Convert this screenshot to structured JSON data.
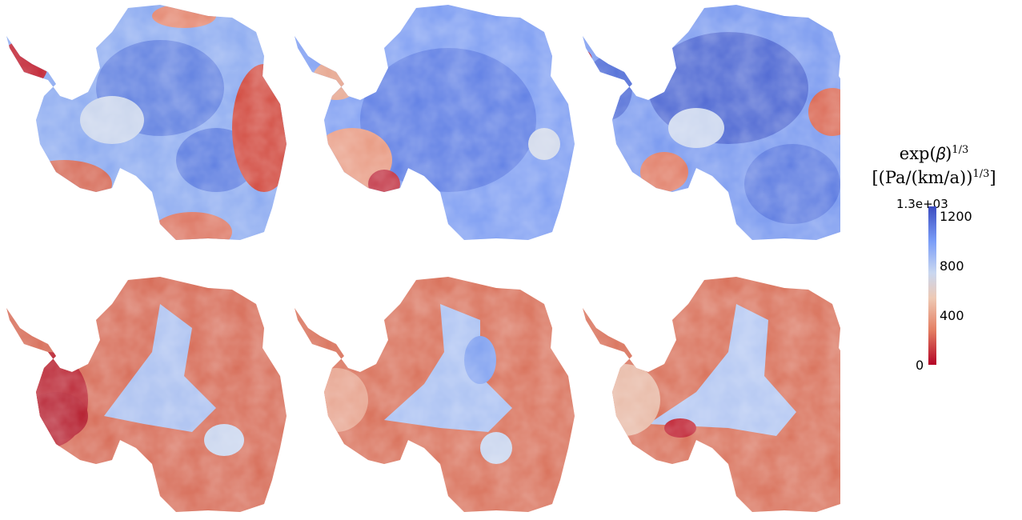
{
  "figure": {
    "rows": 2,
    "cols": 3,
    "panels": [
      {
        "row": 1,
        "col": 1,
        "field": "upper-left map",
        "palette": "mixed"
      },
      {
        "row": 1,
        "col": 2,
        "field": "upper-middle map",
        "palette": "mostly-blue"
      },
      {
        "row": 1,
        "col": 3,
        "field": "upper-right map",
        "palette": "mostly-blue"
      },
      {
        "row": 2,
        "col": 1,
        "field": "lower-left map",
        "palette": "mostly-red"
      },
      {
        "row": 2,
        "col": 2,
        "field": "lower-middle map",
        "palette": "mostly-red"
      },
      {
        "row": 2,
        "col": 3,
        "field": "lower-right map",
        "palette": "mostly-red"
      }
    ]
  },
  "colorbar": {
    "title_line1": "exp(β)^{1/3}",
    "title_line1_display": "exp(𝛽)",
    "title_sup1": "1/3",
    "title_line2_display": "[(Pa/(km/a))",
    "title_sup2": "1/3",
    "title_line2_end": "]",
    "max_label": "1.3e+03",
    "ticks": [
      "1200",
      "800",
      "400",
      "0"
    ],
    "tick_values": [
      1200,
      800,
      400,
      0
    ],
    "range": [
      0,
      1300
    ],
    "colormap": "coolwarm (red=low, blue=high)",
    "colors": {
      "low": "#b40426",
      "mid_low": "#e47f63",
      "mid": "#dcdcdc",
      "mid_high": "#7a9df8",
      "high": "#3b4cc0"
    }
  }
}
